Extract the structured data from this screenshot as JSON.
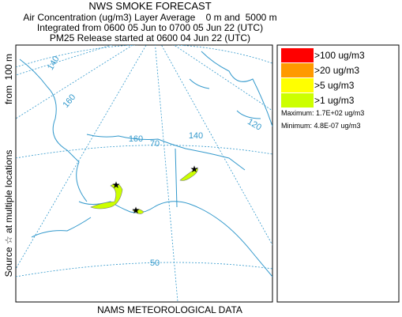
{
  "header": {
    "title": "NWS SMOKE FORECAST",
    "line1": "Air Concentration (ug/m3) Layer Average    0 m and  5000 m",
    "line2": "Integrated from 0600 05 Jun to 0700 05 Jun 22 (UTC)",
    "line3": "PM25 Release started at 0600 04 Jun 22 (UTC)"
  },
  "side_label": {
    "source": "Source ☆ at multiple locations",
    "height": "from  100 m"
  },
  "map": {
    "meridian_labels": [
      "140",
      "160",
      "160",
      "140",
      "120"
    ],
    "parallel_labels": [
      "70",
      "50"
    ]
  },
  "legend": {
    "entries": [
      {
        "label": ">100 ug/m3",
        "color": "#ff0000"
      },
      {
        "label": ">20 ug/m3",
        "color": "#ff9900"
      },
      {
        "label": ">5 ug/m3",
        "color": "#ffff00"
      },
      {
        "label": ">1 ug/m3",
        "color": "#ccff00"
      }
    ],
    "maximum": "Maximum: 1.7E+02 ug/m3",
    "minimum": "Minimum: 4.8E-07 ug/m3"
  },
  "footer": {
    "text": "NAMS METEOROLOGICAL DATA"
  }
}
